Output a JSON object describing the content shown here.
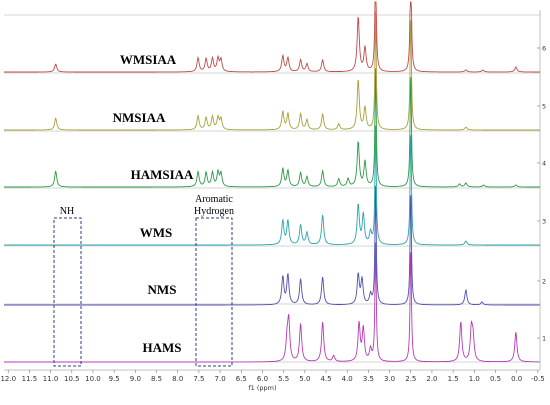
{
  "chart_data": {
    "type": "line",
    "xlabel": "f1 (ppm)",
    "xlim": [
      12.1,
      -0.55
    ],
    "x_ticks": [
      "12.0",
      "11.5",
      "11.0",
      "10.5",
      "10.0",
      "9.5",
      "9.0",
      "8.5",
      "8.0",
      "7.5",
      "7.0",
      "6.5",
      "6.0",
      "5.5",
      "5.0",
      "4.5",
      "4.0",
      "3.5",
      "3.0",
      "2.5",
      "2.0",
      "1.5",
      "1.0",
      "0.5",
      "0.0",
      "-0.5"
    ],
    "y_ticks": [
      "1",
      "2",
      "3",
      "4",
      "5",
      "6"
    ],
    "series": [
      {
        "name": "HAMS",
        "color": "#b53cb5",
        "peaks": [
          [
            5.42,
            20
          ],
          [
            5.38,
            40
          ],
          [
            5.1,
            38
          ],
          [
            4.58,
            40
          ],
          [
            4.32,
            6
          ],
          [
            3.72,
            38
          ],
          [
            3.62,
            33
          ],
          [
            3.45,
            12
          ],
          [
            3.33,
            120
          ],
          [
            2.5,
            120
          ],
          [
            1.32,
            40
          ],
          [
            1.07,
            32
          ],
          [
            1.03,
            22
          ],
          [
            0.02,
            30
          ]
        ]
      },
      {
        "name": "NMS",
        "color": "#4f4fb0",
        "peaks": [
          [
            5.52,
            28
          ],
          [
            5.4,
            30
          ],
          [
            5.1,
            26
          ],
          [
            4.58,
            28
          ],
          [
            3.74,
            30
          ],
          [
            3.65,
            25
          ],
          [
            3.45,
            10
          ],
          [
            3.33,
            120
          ],
          [
            2.5,
            120
          ],
          [
            1.2,
            15
          ],
          [
            0.82,
            3
          ]
        ]
      },
      {
        "name": "WMS",
        "color": "#2aa5a8",
        "peaks": [
          [
            5.52,
            24
          ],
          [
            5.4,
            24
          ],
          [
            5.1,
            20
          ],
          [
            4.95,
            12
          ],
          [
            4.58,
            30
          ],
          [
            3.74,
            40
          ],
          [
            3.62,
            30
          ],
          [
            3.45,
            12
          ],
          [
            3.33,
            120
          ],
          [
            2.5,
            120
          ],
          [
            1.2,
            4
          ]
        ]
      },
      {
        "name": "HAMSIAA",
        "color": "#2a9a45",
        "peaks": [
          [
            10.88,
            16
          ],
          [
            7.52,
            15
          ],
          [
            7.33,
            14
          ],
          [
            7.18,
            14
          ],
          [
            7.05,
            14
          ],
          [
            6.98,
            13
          ],
          [
            5.52,
            18
          ],
          [
            5.4,
            16
          ],
          [
            5.1,
            14
          ],
          [
            4.95,
            10
          ],
          [
            4.58,
            16
          ],
          [
            4.2,
            8
          ],
          [
            3.98,
            8
          ],
          [
            3.74,
            45
          ],
          [
            3.58,
            25
          ],
          [
            3.33,
            120
          ],
          [
            2.5,
            120
          ],
          [
            1.35,
            3
          ],
          [
            1.2,
            4
          ],
          [
            0.78,
            2
          ],
          [
            0.02,
            2
          ]
        ]
      },
      {
        "name": "NMSIAA",
        "color": "#a8a03a",
        "peaks": [
          [
            10.88,
            12
          ],
          [
            7.52,
            14
          ],
          [
            7.33,
            12
          ],
          [
            7.18,
            13
          ],
          [
            7.05,
            12
          ],
          [
            6.98,
            11
          ],
          [
            5.52,
            18
          ],
          [
            5.4,
            16
          ],
          [
            5.1,
            16
          ],
          [
            4.95,
            10
          ],
          [
            4.58,
            16
          ],
          [
            4.2,
            6
          ],
          [
            3.74,
            50
          ],
          [
            3.58,
            22
          ],
          [
            3.33,
            120
          ],
          [
            2.5,
            120
          ],
          [
            1.2,
            3
          ]
        ]
      },
      {
        "name": "WMSIAA",
        "color": "#c04a4a",
        "peaks": [
          [
            10.88,
            8
          ],
          [
            7.52,
            14
          ],
          [
            7.33,
            13
          ],
          [
            7.18,
            13
          ],
          [
            7.05,
            13
          ],
          [
            6.98,
            12
          ],
          [
            5.52,
            16
          ],
          [
            5.4,
            14
          ],
          [
            5.1,
            12
          ],
          [
            4.95,
            8
          ],
          [
            4.58,
            12
          ],
          [
            3.74,
            55
          ],
          [
            3.58,
            24
          ],
          [
            3.33,
            120
          ],
          [
            2.5,
            120
          ],
          [
            1.2,
            2
          ],
          [
            0.8,
            2
          ],
          [
            0.02,
            5
          ]
        ]
      }
    ],
    "annotations": {
      "nh_label": "NH",
      "aromatic_label_line1": "Aromatic",
      "aromatic_label_line2": "Hydrogen"
    }
  }
}
